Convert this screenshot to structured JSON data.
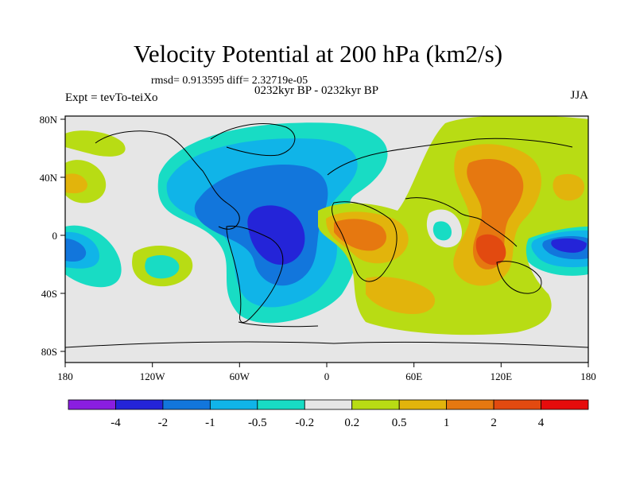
{
  "header": {
    "title": "Velocity Potential at 200 hPa (km2/s)",
    "stats": "rmsd= 0.913595  diff= 2.32719e-05",
    "experiment": "Expt = tevTo-teiXo",
    "period": "0232kyr BP - 0232kyr BP",
    "season": "JJA"
  },
  "axes": {
    "x_ticks": [
      "180",
      "120W",
      "60W",
      "0",
      "60E",
      "120E",
      "180"
    ],
    "y_ticks": [
      "80N",
      "40N",
      "0",
      "40S",
      "80S"
    ]
  },
  "colorbar": {
    "labels": [
      "-4",
      "-2",
      "-1",
      "-0.5",
      "-0.2",
      "0.2",
      "0.5",
      "1",
      "2",
      "4"
    ],
    "colors": [
      "#8a1ee0",
      "#2424d8",
      "#1276dc",
      "#10b4e8",
      "#18dcc4",
      "#e6e6e6",
      "#b8dc14",
      "#e2b40c",
      "#e67810",
      "#e24a10",
      "#e60c0c"
    ]
  }
}
